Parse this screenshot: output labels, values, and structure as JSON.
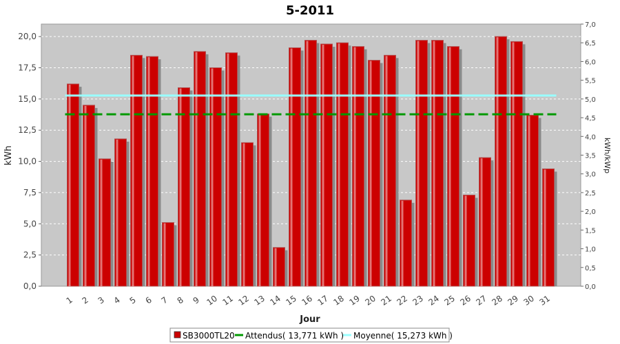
{
  "chart_data": {
    "type": "bar",
    "title": "5-2011",
    "xlabel": "Jour",
    "ylabel": "kWh",
    "y2label": "kWh/kWp",
    "ylim": [
      0,
      21
    ],
    "y2lim": [
      0,
      7
    ],
    "yticks": [
      "0,0",
      "2,5",
      "5,0",
      "7,5",
      "10,0",
      "12,5",
      "15,0",
      "17,5",
      "20,0"
    ],
    "y2ticks": [
      "0,0",
      "0,5",
      "1,0",
      "1,5",
      "2,0",
      "2,5",
      "3,0",
      "3,5",
      "4,0",
      "4,5",
      "5,0",
      "5,5",
      "6,0",
      "6,5",
      "7,0"
    ],
    "categories": [
      "1",
      "2",
      "3",
      "4",
      "5",
      "6",
      "7",
      "8",
      "9",
      "10",
      "11",
      "12",
      "13",
      "14",
      "15",
      "16",
      "17",
      "18",
      "19",
      "20",
      "21",
      "22",
      "23",
      "24",
      "25",
      "26",
      "27",
      "28",
      "29",
      "30",
      "31"
    ],
    "series": [
      {
        "name": "SB3000TL20",
        "color": "#cc0000",
        "values": [
          16.2,
          14.5,
          10.2,
          11.8,
          18.5,
          18.4,
          5.1,
          15.9,
          18.8,
          17.5,
          18.7,
          11.5,
          13.8,
          3.1,
          19.1,
          19.7,
          19.4,
          19.5,
          19.2,
          18.1,
          18.5,
          6.9,
          19.7,
          19.7,
          19.2,
          7.3,
          10.3,
          20.0,
          19.6,
          13.7,
          9.4
        ]
      }
    ],
    "reference_lines": [
      {
        "name": "Attendus",
        "label": "Attendus( 13,771 kWh )",
        "value": 13.771,
        "color": "#009900",
        "dashed": true
      },
      {
        "name": "Moyenne",
        "label": "Moyenne( 15,273 kWh )",
        "value": 15.273,
        "color": "#99ffff",
        "dashed": false
      }
    ],
    "legend_position": "bottom",
    "grid": true,
    "plot_background": "#c8c8c8"
  }
}
